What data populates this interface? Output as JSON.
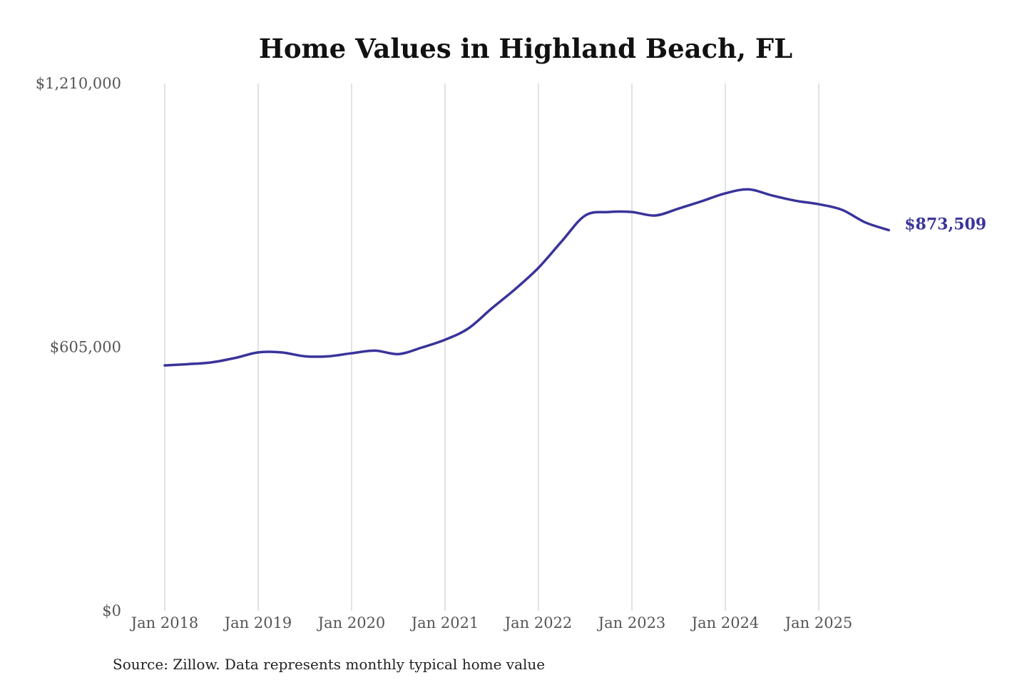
{
  "chart_data": {
    "type": "line",
    "title": "Home Values in Highland Beach, FL",
    "source": "Source: Zillow. Data represents monthly typical home value",
    "y_ticks": [
      "$0",
      "$605,000",
      "$1,210,000"
    ],
    "y_tick_values": [
      0,
      605000,
      1210000
    ],
    "ylim": [
      0,
      1210000
    ],
    "x_ticks": [
      "Jan 2018",
      "Jan 2019",
      "Jan 2020",
      "Jan 2021",
      "Jan 2022",
      "Jan 2023",
      "Jan 2024",
      "Jan 2025"
    ],
    "x_tick_values": [
      "2018-01",
      "2019-01",
      "2020-01",
      "2021-01",
      "2022-01",
      "2023-01",
      "2024-01",
      "2025-01"
    ],
    "grid": "vertical",
    "line_color": "#3a339a",
    "end_label": "$873,509",
    "x": [
      "2018-01",
      "2018-04",
      "2018-07",
      "2018-10",
      "2019-01",
      "2019-04",
      "2019-07",
      "2019-10",
      "2020-01",
      "2020-04",
      "2020-07",
      "2020-10",
      "2021-01",
      "2021-04",
      "2021-07",
      "2021-10",
      "2022-01",
      "2022-04",
      "2022-07",
      "2022-10",
      "2023-01",
      "2023-04",
      "2023-07",
      "2023-10",
      "2024-01",
      "2024-04",
      "2024-07",
      "2024-10",
      "2025-01",
      "2025-04",
      "2025-07",
      "2025-10"
    ],
    "values": [
      563000,
      566000,
      570000,
      580000,
      593000,
      593000,
      584000,
      584000,
      591000,
      597000,
      589000,
      604000,
      622000,
      648000,
      694000,
      738000,
      787000,
      848000,
      907000,
      915000,
      915000,
      907000,
      923000,
      940000,
      958000,
      967000,
      953000,
      941000,
      933000,
      920000,
      891000,
      873509
    ]
  }
}
